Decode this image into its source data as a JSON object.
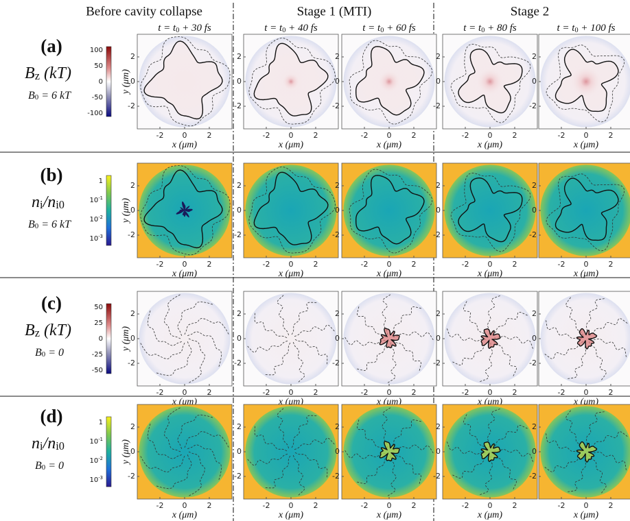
{
  "columns": [
    "Before cavity collapse",
    "Stage 1 (MTI)",
    "Stage 2"
  ],
  "times": [
    [
      "t = t",
      "0",
      " + 30 fs"
    ],
    [
      "t = t",
      "0",
      " + 40 fs"
    ],
    [
      "t = t",
      "0",
      " + 60 fs"
    ],
    [
      "t = t",
      "0",
      " + 80 fs"
    ],
    [
      "t = t",
      "0",
      " + 100 fs"
    ]
  ],
  "rows": [
    {
      "label": "(a)",
      "quantity": [
        "B",
        "z",
        " (kT)"
      ],
      "condition": [
        "B",
        "0",
        " = 6 kT"
      ],
      "colorbar_ticks": [
        [
          "100"
        ],
        [
          "50"
        ],
        [
          "0"
        ],
        [
          "-50"
        ],
        [
          "-100"
        ]
      ]
    },
    {
      "label": "(b)",
      "quantity": [
        "n",
        "i",
        "/n",
        "i0"
      ],
      "condition": [
        "B",
        "0",
        " = 6 kT"
      ],
      "colorbar_ticks": [
        [
          "1"
        ],
        [
          "10",
          "-1"
        ],
        [
          "10",
          "-2"
        ],
        [
          "10",
          "-3"
        ]
      ]
    },
    {
      "label": "(c)",
      "quantity": [
        "B",
        "z",
        " (kT)"
      ],
      "condition": [
        "B",
        "0",
        " = 0"
      ],
      "colorbar_ticks": [
        [
          "50"
        ],
        [
          "25"
        ],
        [
          "0"
        ],
        [
          "-25"
        ],
        [
          "-50"
        ]
      ]
    },
    {
      "label": "(d)",
      "quantity": [
        "n",
        "i",
        "/n",
        "i0"
      ],
      "condition": [
        "B",
        "0",
        " = 0"
      ],
      "colorbar_ticks": [
        [
          "1"
        ],
        [
          "10",
          "-1"
        ],
        [
          "10",
          "-2"
        ],
        [
          "10",
          "-3"
        ]
      ]
    }
  ],
  "axes": {
    "x_label": "x (μm)",
    "y_label": "y (μm)",
    "x_ticks": [
      "-2",
      "0",
      "2"
    ],
    "y_ticks": [
      "2",
      "0",
      "-2"
    ]
  }
}
